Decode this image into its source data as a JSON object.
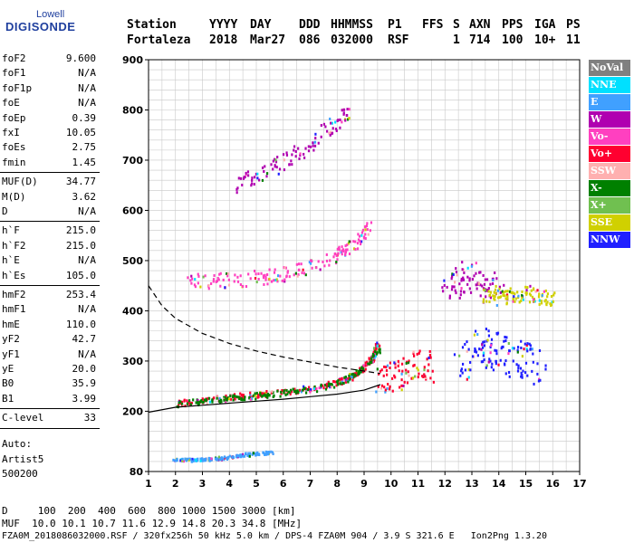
{
  "logo": {
    "line1": "Lowell",
    "line2": "DIGISONDE"
  },
  "header": {
    "row1": {
      "station": "Station",
      "yyyy": "YYYY",
      "day": "DAY",
      "ddd": "DDD",
      "hhmmss": "HHMMSS",
      "p1": "P1",
      "ffs": "FFS",
      "s": "S",
      "axn": "AXN",
      "pps": "PPS",
      "iga": "IGA",
      "ps": "PS"
    },
    "row2": {
      "station": "Fortaleza",
      "yyyy": "2018",
      "day": "Mar27",
      "ddd": "086",
      "hhmmss": "032000",
      "p1": "RSF",
      "ffs": "",
      "s": "1",
      "axn": "714",
      "pps": "100",
      "iga": "10+",
      "ps": "11"
    }
  },
  "params_group1": [
    {
      "name": "foF2",
      "value": "9.600"
    },
    {
      "name": "foF1",
      "value": "N/A"
    },
    {
      "name": "foF1p",
      "value": "N/A"
    },
    {
      "name": "foE",
      "value": "N/A"
    },
    {
      "name": "foEp",
      "value": "0.39"
    },
    {
      "name": "fxI",
      "value": "10.05"
    },
    {
      "name": "foEs",
      "value": "2.75"
    },
    {
      "name": "fmin",
      "value": "1.45"
    }
  ],
  "params_group2": [
    {
      "name": "MUF(D)",
      "value": "34.77"
    },
    {
      "name": "M(D)",
      "value": "3.62"
    },
    {
      "name": "D",
      "value": "N/A"
    }
  ],
  "params_group3": [
    {
      "name": "h`F",
      "value": "215.0"
    },
    {
      "name": "h`F2",
      "value": "215.0"
    },
    {
      "name": "h`E",
      "value": "N/A"
    },
    {
      "name": "h`Es",
      "value": "105.0"
    }
  ],
  "params_group4": [
    {
      "name": "hmF2",
      "value": "253.4"
    },
    {
      "name": "hmF1",
      "value": "N/A"
    },
    {
      "name": "hmE",
      "value": "110.0"
    },
    {
      "name": "yF2",
      "value": "42.7"
    },
    {
      "name": "yF1",
      "value": "N/A"
    },
    {
      "name": "yE",
      "value": "20.0"
    },
    {
      "name": "B0",
      "value": "35.9"
    },
    {
      "name": "B1",
      "value": "3.99"
    }
  ],
  "params_group5": [
    {
      "name": "C-level",
      "value": "33"
    }
  ],
  "autoscaling": {
    "line1": "Auto:",
    "line2": "Artist5",
    "line3": "500200"
  },
  "legend": [
    {
      "label": "NoVal",
      "color": "#808080"
    },
    {
      "label": "NNE",
      "color": "#00e0ff"
    },
    {
      "label": "E",
      "color": "#40a0ff"
    },
    {
      "label": "W",
      "color": "#b000b0"
    },
    {
      "label": "Vo-",
      "color": "#ff40c0"
    },
    {
      "label": "Vo+",
      "color": "#ff0030"
    },
    {
      "label": "SSW",
      "color": "#ffb0b0"
    },
    {
      "label": "X-",
      "color": "#008000"
    },
    {
      "label": "X+",
      "color": "#70c050"
    },
    {
      "label": "SSE",
      "color": "#d0d000"
    },
    {
      "label": "NNW",
      "color": "#2020ff"
    }
  ],
  "footer": {
    "d_row": "D     100  200  400  600  800 1000 1500 3000 [km]",
    "muf_row": "MUF  10.0 10.1 10.7 11.6 12.9 14.8 20.3 34.8 [MHz]",
    "info_row": "FZA0M_2018086032000.RSF / 320fx256h 50 kHz 5.0 km / DPS-4 FZA0M 904 / 3.9 S 321.6 E   Ion2Png 1.3.20"
  },
  "chart_data": {
    "type": "scatter",
    "title": "",
    "xlabel": "",
    "ylabel": "",
    "xlim": [
      1,
      17
    ],
    "ylim": [
      80,
      900
    ],
    "xticks": [
      1,
      2,
      3,
      4,
      5,
      6,
      7,
      8,
      9,
      10,
      11,
      12,
      13,
      14,
      15,
      16,
      17
    ],
    "yticks": [
      80,
      200,
      300,
      400,
      500,
      600,
      700,
      800,
      900
    ],
    "grid": true,
    "legend_placement": "right",
    "traces": [
      {
        "kind": "o_trace_F",
        "color": "#ff0030",
        "points": [
          [
            2.0,
            217
          ],
          [
            3.0,
            225
          ],
          [
            4.0,
            230
          ],
          [
            5.0,
            235
          ],
          [
            6.0,
            240
          ],
          [
            7.0,
            248
          ],
          [
            8.0,
            260
          ],
          [
            8.5,
            270
          ],
          [
            9.0,
            290
          ],
          [
            9.3,
            310
          ],
          [
            9.5,
            340
          ]
        ]
      },
      {
        "kind": "x_trace_F",
        "color": "#008000",
        "points": [
          [
            2.0,
            215
          ],
          [
            3.0,
            222
          ],
          [
            4.0,
            228
          ],
          [
            5.0,
            233
          ],
          [
            6.0,
            238
          ],
          [
            7.0,
            245
          ],
          [
            8.0,
            258
          ],
          [
            8.6,
            275
          ],
          [
            9.2,
            300
          ],
          [
            9.6,
            330
          ]
        ]
      },
      {
        "kind": "second_hop",
        "color": "#ff40c0",
        "points": [
          [
            2.5,
            460
          ],
          [
            3.5,
            462
          ],
          [
            4.5,
            465
          ],
          [
            5.5,
            470
          ],
          [
            6.5,
            480
          ],
          [
            7.5,
            500
          ],
          [
            8.2,
            520
          ],
          [
            8.8,
            545
          ],
          [
            9.2,
            570
          ]
        ]
      },
      {
        "kind": "third_hop",
        "color": "#b000b0",
        "points": [
          [
            4.2,
            650
          ],
          [
            5.0,
            670
          ],
          [
            6.0,
            700
          ],
          [
            7.0,
            735
          ],
          [
            7.8,
            770
          ],
          [
            8.4,
            800
          ]
        ]
      },
      {
        "kind": "spread_F",
        "color": "#ff0030",
        "points": [
          [
            9.5,
            260
          ],
          [
            10.0,
            270
          ],
          [
            10.5,
            280
          ],
          [
            11.0,
            300
          ],
          [
            11.5,
            285
          ]
        ]
      },
      {
        "kind": "oblique_NNW",
        "color": "#2020ff",
        "points": [
          [
            12.5,
            300
          ],
          [
            13.0,
            320
          ],
          [
            13.5,
            330
          ],
          [
            14.0,
            320
          ],
          [
            14.5,
            310
          ],
          [
            15.0,
            300
          ],
          [
            15.5,
            290
          ]
        ]
      },
      {
        "kind": "oblique_W",
        "color": "#b000b0",
        "points": [
          [
            12.0,
            450
          ],
          [
            12.5,
            460
          ],
          [
            13.0,
            470
          ],
          [
            13.5,
            450
          ],
          [
            14.0,
            440
          ]
        ]
      },
      {
        "kind": "oblique_SSE",
        "color": "#d0d000",
        "points": [
          [
            13.5,
            430
          ],
          [
            14.0,
            440
          ],
          [
            14.5,
            430
          ],
          [
            15.0,
            440
          ],
          [
            15.5,
            430
          ],
          [
            16.0,
            425
          ]
        ]
      },
      {
        "kind": "sporadic_E",
        "color": "#40a0ff",
        "points": [
          [
            2.0,
            105
          ],
          [
            2.5,
            105
          ],
          [
            3.0,
            106
          ],
          [
            3.5,
            108
          ],
          [
            4.0,
            110
          ],
          [
            4.5,
            115
          ],
          [
            5.0,
            118
          ],
          [
            5.5,
            120
          ]
        ]
      }
    ],
    "profile_solid": [
      [
        1.0,
        198
      ],
      [
        2.0,
        208
      ],
      [
        3.0,
        212
      ],
      [
        4.0,
        216
      ],
      [
        5.0,
        220
      ],
      [
        6.0,
        224
      ],
      [
        7.0,
        229
      ],
      [
        8.0,
        234
      ],
      [
        8.5,
        238
      ],
      [
        9.0,
        242
      ],
      [
        9.6,
        253
      ]
    ],
    "profile_dashed": [
      [
        1.0,
        450
      ],
      [
        1.5,
        410
      ],
      [
        2.0,
        385
      ],
      [
        3.0,
        355
      ],
      [
        4.0,
        335
      ],
      [
        5.0,
        320
      ],
      [
        6.0,
        308
      ],
      [
        7.0,
        298
      ],
      [
        8.0,
        288
      ],
      [
        9.0,
        280
      ],
      [
        9.6,
        275
      ]
    ]
  }
}
